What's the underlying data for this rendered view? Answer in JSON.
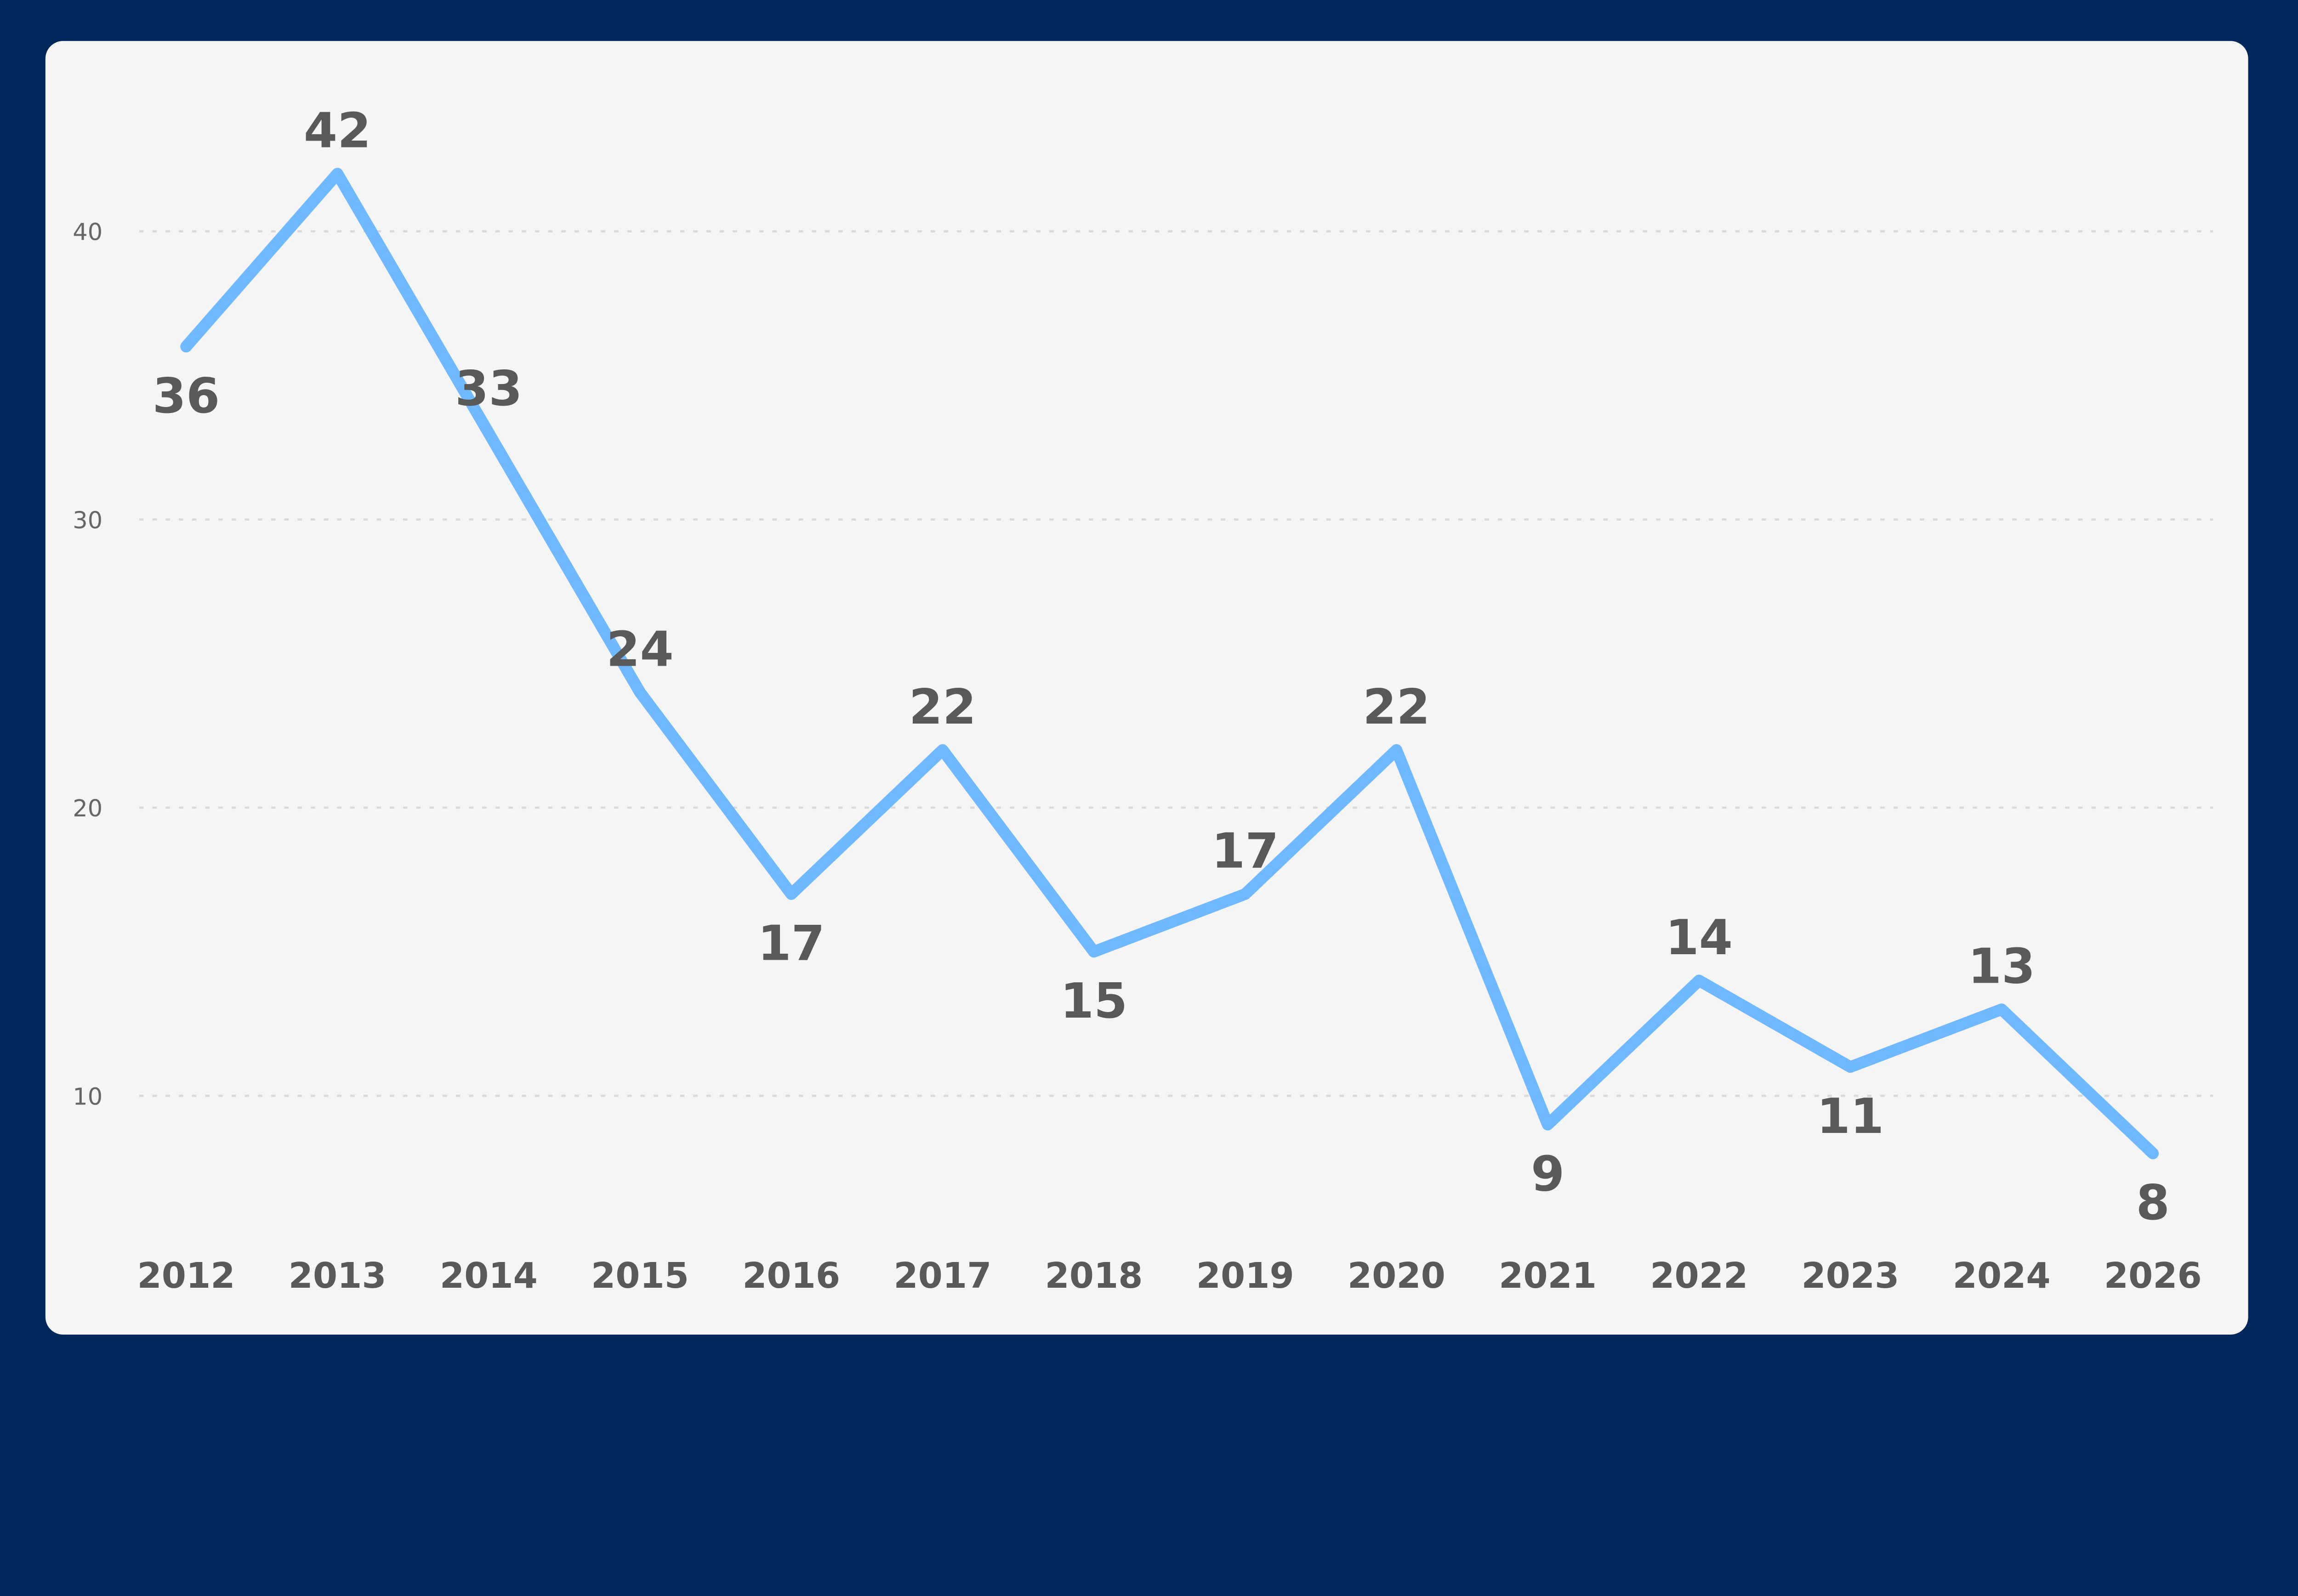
{
  "colors": {
    "background": "#02275a",
    "card": "#f5f5f5",
    "line": "#70b8ff",
    "text": "#595959",
    "grid": "#d9d9d9"
  },
  "chart_data": {
    "type": "line",
    "title": "",
    "xlabel": "",
    "ylabel": "",
    "categories": [
      "2012",
      "2013",
      "2014",
      "2015",
      "2016",
      "2017",
      "2018",
      "2019",
      "2020",
      "2021",
      "2022",
      "2023",
      "2024",
      "2026"
    ],
    "series": [
      {
        "name": "",
        "values": [
          36,
          42,
          33,
          24,
          17,
          22,
          15,
          17,
          22,
          9,
          14,
          11,
          13,
          8
        ]
      }
    ],
    "yticks": [
      10,
      20,
      30,
      40
    ],
    "ylim": [
      10,
      40
    ],
    "grid": true,
    "legend": "none",
    "data_labels": true
  }
}
